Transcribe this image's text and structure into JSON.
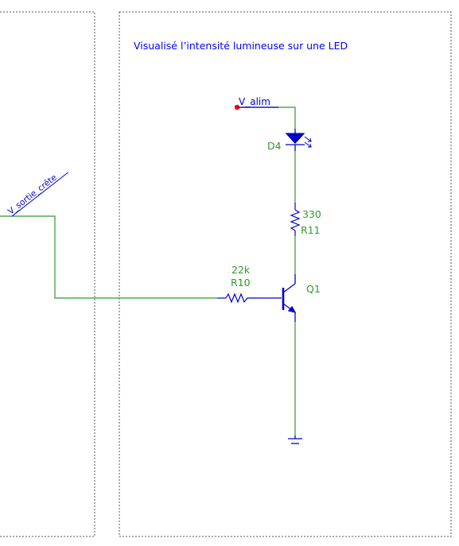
{
  "diagram": {
    "title": "Visualisé l’intensité lumineuse sur une LED",
    "net_labels": {
      "v_alim": "V_alim",
      "v_sortie_crete": "V_sortie_crête"
    },
    "components": {
      "led": {
        "ref": "D4"
      },
      "resistor_collector": {
        "value": "330",
        "ref": "R11"
      },
      "resistor_base": {
        "value": "22k",
        "ref": "R10"
      },
      "transistor": {
        "ref": "Q1"
      }
    },
    "colors": {
      "wire": "#2e9a2e",
      "component": "#0000cc",
      "label_green": "#2e9a2e",
      "title": "#0000ff",
      "net_label": "#0000cc",
      "junction": "#ff0000",
      "border": "#555555"
    }
  }
}
